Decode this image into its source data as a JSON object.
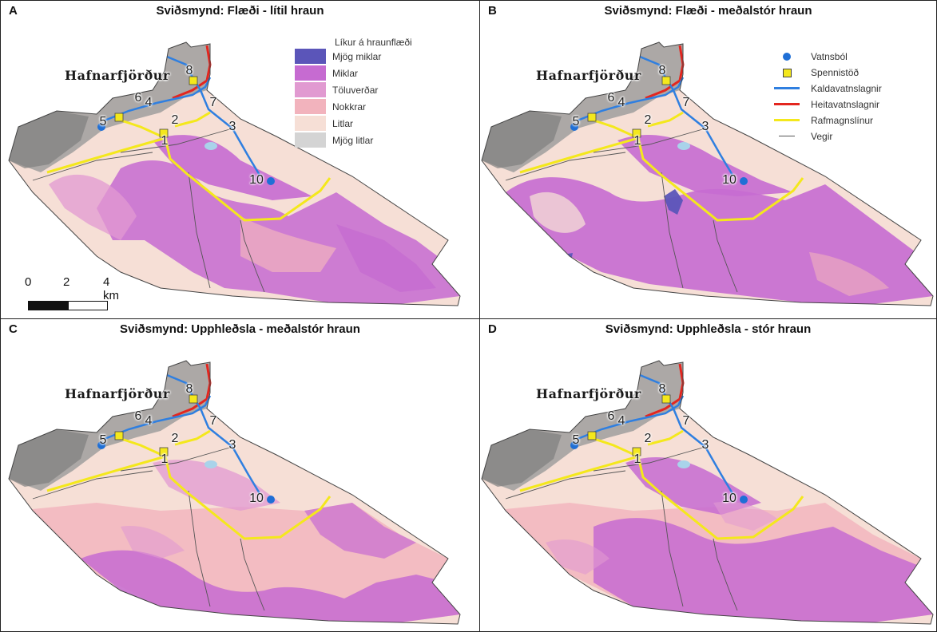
{
  "town_label": "Hafnarfjörður",
  "panels": [
    {
      "letter": "A",
      "title": "Sviðsmynd: Flæði - lítil hraun"
    },
    {
      "letter": "B",
      "title": "Sviðsmynd: Flæði - meðalstór hraun"
    },
    {
      "letter": "C",
      "title": "Sviðsmynd: Upphleðsla - meðalstór hraun"
    },
    {
      "letter": "D",
      "title": "Sviðsmynd: Upphleðsla - stór hraun"
    }
  ],
  "labels": [
    "1",
    "2",
    "3",
    "4",
    "5",
    "6",
    "7",
    "8",
    "10"
  ],
  "hazard_legend": {
    "title": "Líkur á hraunflæði",
    "classes": [
      {
        "label": "Mjög miklar",
        "color": "#5b55b9"
      },
      {
        "label": "Miklar",
        "color": "#c66bd1"
      },
      {
        "label": "Töluverðar",
        "color": "#e19ad1"
      },
      {
        "label": "Nokkrar",
        "color": "#f2b3bd"
      },
      {
        "label": "Litlar",
        "color": "#f6dfd6"
      },
      {
        "label": "Mjög litlar",
        "color": "#d4d4d4"
      }
    ]
  },
  "infra_legend": [
    {
      "label": "Vatnsból",
      "symbol": "circle",
      "color": "#1f6fd6"
    },
    {
      "label": "Spennistöð",
      "symbol": "square",
      "color": "#f4e81c"
    },
    {
      "label": "Kaldavatnslagnir",
      "symbol": "line",
      "color": "#2f7fe0"
    },
    {
      "label": "Heitavatnslagnir",
      "symbol": "line",
      "color": "#e3261f"
    },
    {
      "label": "Rafmagnslínur",
      "symbol": "line",
      "color": "#f4e81c"
    },
    {
      "label": "Vegir",
      "symbol": "thin-line",
      "color": "#555555"
    }
  ],
  "scale": {
    "ticks": [
      "0",
      "2",
      "4 km"
    ]
  },
  "colors": {
    "area_fill": "#f6dfd6",
    "urban": "#9a9a9a",
    "outline": "#444444"
  }
}
